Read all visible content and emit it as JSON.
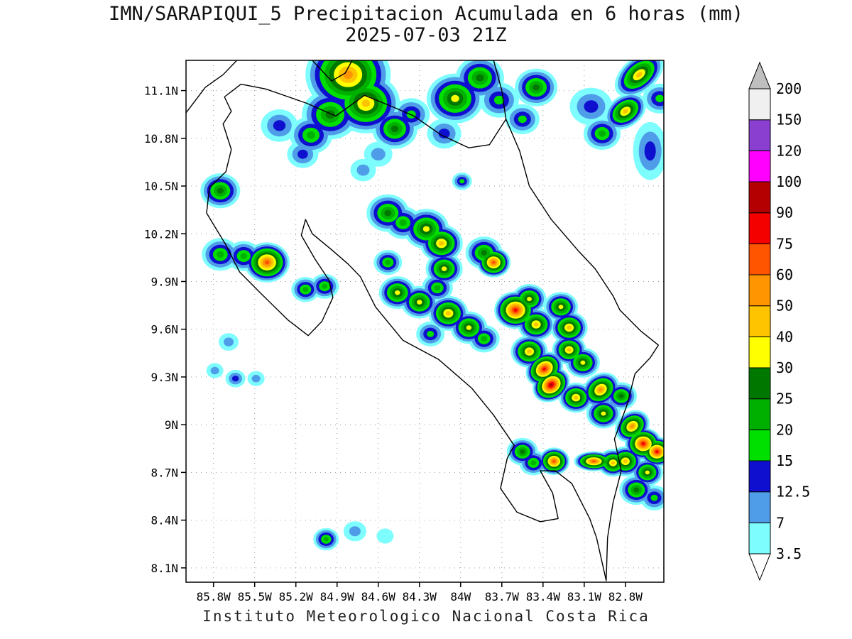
{
  "title": {
    "line1": "IMN/SARAPIQUI_5 Precipitacion Acumulada en 6 horas (mm)",
    "line2": "2025-07-03 21Z"
  },
  "footer": "Instituto Meteorologico Nacional Costa Rica",
  "chart_data": {
    "type": "heatmap",
    "title": "IMN/SARAPIQUI_5 Precipitacion Acumulada en 6 horas (mm)",
    "valid_time": "2025-07-03 21Z",
    "units": "mm",
    "region": "Costa Rica",
    "lon_range": [
      -86.0,
      -82.52
    ],
    "lat_range": [
      8.01,
      11.29
    ],
    "x_ticks": {
      "values": [
        -85.8,
        -85.5,
        -85.2,
        -84.9,
        -84.6,
        -84.3,
        -84.0,
        -83.7,
        -83.4,
        -83.1,
        -82.8
      ],
      "labels": [
        "85.8W",
        "85.5W",
        "85.2W",
        "84.9W",
        "84.6W",
        "84.3W",
        "84W",
        "83.7W",
        "83.4W",
        "83.1W",
        "82.8W"
      ]
    },
    "y_ticks": {
      "values": [
        11.1,
        10.8,
        10.5,
        10.2,
        9.9,
        9.6,
        9.3,
        9.0,
        8.7,
        8.4,
        8.1
      ],
      "labels": [
        "11.1N",
        "10.8N",
        "10.5N",
        "10.2N",
        "9.9N",
        "9.6N",
        "9.3N",
        "9N",
        "8.7N",
        "8.4N",
        "8.1N"
      ]
    },
    "grid": true,
    "legend_position": "right",
    "levels": [
      3.5,
      7,
      12.5,
      15,
      20,
      25,
      30,
      40,
      50,
      60,
      75,
      90,
      100,
      120,
      150,
      200
    ],
    "level_labels": [
      "3.5",
      "7",
      "12.5",
      "15",
      "20",
      "25",
      "30",
      "40",
      "50",
      "60",
      "75",
      "90",
      "100",
      "120",
      "150",
      "200"
    ],
    "colors": [
      "#7dfdfd",
      "#4f9ce8",
      "#0f0fd0",
      "#00e000",
      "#00b000",
      "#007800",
      "#ffff00",
      "#ffc400",
      "#ff9500",
      "#ff5500",
      "#f50000",
      "#b40000",
      "#ff00ff",
      "#8a3fd1",
      "#f0f0f0"
    ],
    "overflow_color": "#bfbfbf",
    "underflow_color": "#ffffff",
    "cells_format": "[lon, lat, peak_mm, radius_deg, optional_ry_ratio, optional_rotation_deg]",
    "cells": [
      [
        -84.82,
        11.2,
        50,
        0.3
      ],
      [
        -84.69,
        11.02,
        40,
        0.24
      ],
      [
        -84.95,
        10.95,
        25,
        0.2
      ],
      [
        -85.09,
        10.82,
        20,
        0.15
      ],
      [
        -85.32,
        10.88,
        12.5,
        0.13
      ],
      [
        -85.15,
        10.7,
        12.5,
        0.11
      ],
      [
        -84.48,
        10.86,
        25,
        0.16
      ],
      [
        -84.36,
        10.95,
        15,
        0.13
      ],
      [
        -84.6,
        10.7,
        7,
        0.1
      ],
      [
        -84.04,
        11.05,
        30,
        0.2
      ],
      [
        -83.86,
        11.18,
        25,
        0.17
      ],
      [
        -84.12,
        10.83,
        12.5,
        0.12
      ],
      [
        -83.72,
        11.04,
        15,
        0.14
      ],
      [
        -83.45,
        11.12,
        25,
        0.15
      ],
      [
        -83.55,
        10.92,
        15,
        0.12
      ],
      [
        -83.05,
        11.0,
        12.5,
        0.15
      ],
      [
        -82.97,
        10.83,
        20,
        0.13
      ],
      [
        -82.7,
        11.2,
        40,
        0.2,
        0.6,
        -40
      ],
      [
        -82.8,
        10.97,
        40,
        0.16,
        0.7,
        -35
      ],
      [
        -82.62,
        10.72,
        12.5,
        0.12,
        1.7,
        0
      ],
      [
        -82.55,
        11.05,
        15,
        0.12
      ],
      [
        -85.75,
        10.47,
        25,
        0.14
      ],
      [
        -85.75,
        10.07,
        20,
        0.13
      ],
      [
        -85.41,
        10.02,
        60,
        0.16
      ],
      [
        -85.58,
        10.06,
        20,
        0.12
      ],
      [
        -85.13,
        9.85,
        20,
        0.1
      ],
      [
        -84.99,
        9.87,
        20,
        0.1
      ],
      [
        -84.71,
        10.6,
        7,
        0.09
      ],
      [
        -83.99,
        10.53,
        15,
        0.07
      ],
      [
        -84.53,
        10.33,
        25,
        0.15
      ],
      [
        -84.42,
        10.27,
        20,
        0.13
      ],
      [
        -84.25,
        10.23,
        30,
        0.16
      ],
      [
        -84.14,
        10.14,
        40,
        0.15
      ],
      [
        -84.53,
        10.02,
        20,
        0.1
      ],
      [
        -84.12,
        9.98,
        30,
        0.13
      ],
      [
        -83.83,
        10.08,
        25,
        0.13
      ],
      [
        -83.76,
        10.02,
        60,
        0.12
      ],
      [
        -84.46,
        9.83,
        30,
        0.13
      ],
      [
        -84.3,
        9.77,
        30,
        0.13
      ],
      [
        -84.17,
        9.86,
        20,
        0.11
      ],
      [
        -84.09,
        9.7,
        40,
        0.14
      ],
      [
        -84.22,
        9.57,
        15,
        0.1
      ],
      [
        -83.94,
        9.61,
        30,
        0.13
      ],
      [
        -83.83,
        9.54,
        20,
        0.11
      ],
      [
        -83.6,
        9.72,
        75,
        0.15
      ],
      [
        -83.5,
        9.79,
        30,
        0.12
      ],
      [
        -83.45,
        9.63,
        40,
        0.13
      ],
      [
        -83.27,
        9.74,
        30,
        0.12
      ],
      [
        -83.21,
        9.61,
        40,
        0.13
      ],
      [
        -83.5,
        9.46,
        40,
        0.13
      ],
      [
        -83.39,
        9.35,
        75,
        0.14,
        0.8,
        -35
      ],
      [
        -83.34,
        9.25,
        90,
        0.14,
        0.8,
        -35
      ],
      [
        -83.21,
        9.47,
        40,
        0.12
      ],
      [
        -83.11,
        9.39,
        30,
        0.12
      ],
      [
        -82.98,
        9.22,
        50,
        0.14,
        0.8,
        -35
      ],
      [
        -83.16,
        9.17,
        40,
        0.12
      ],
      [
        -82.96,
        9.07,
        30,
        0.12
      ],
      [
        -82.83,
        9.18,
        25,
        0.11
      ],
      [
        -82.75,
        8.99,
        50,
        0.13,
        0.8,
        -35
      ],
      [
        -82.67,
        8.88,
        75,
        0.13
      ],
      [
        -82.57,
        8.83,
        75,
        0.12
      ],
      [
        -82.8,
        8.77,
        40,
        0.12
      ],
      [
        -82.64,
        8.7,
        30,
        0.11
      ],
      [
        -83.55,
        8.83,
        25,
        0.11
      ],
      [
        -83.47,
        8.76,
        20,
        0.1
      ],
      [
        -83.32,
        8.77,
        60,
        0.11
      ],
      [
        -83.03,
        8.77,
        60,
        0.14,
        0.5,
        0
      ],
      [
        -82.89,
        8.76,
        40,
        0.11
      ],
      [
        -82.72,
        8.59,
        25,
        0.12
      ],
      [
        -82.59,
        8.54,
        15,
        0.1
      ],
      [
        -85.69,
        9.52,
        7,
        0.07
      ],
      [
        -85.64,
        9.29,
        12.5,
        0.07
      ],
      [
        -85.79,
        9.34,
        7,
        0.06
      ],
      [
        -85.49,
        9.29,
        7,
        0.06
      ],
      [
        -84.98,
        8.28,
        20,
        0.09
      ],
      [
        -84.77,
        8.33,
        7,
        0.08
      ],
      [
        -84.55,
        8.3,
        3.5,
        0.06
      ]
    ],
    "basemap": {
      "costa_rica_outline": [
        [
          -85.72,
          11.06
        ],
        [
          -85.6,
          11.14
        ],
        [
          -85.42,
          11.11
        ],
        [
          -85.12,
          11.02
        ],
        [
          -84.91,
          10.94
        ],
        [
          -84.7,
          11.07
        ],
        [
          -84.5,
          11.0
        ],
        [
          -84.34,
          10.94
        ],
        [
          -84.14,
          10.82
        ],
        [
          -83.94,
          10.74
        ],
        [
          -83.79,
          10.76
        ],
        [
          -83.67,
          10.92
        ],
        [
          -83.57,
          10.72
        ],
        [
          -83.5,
          10.5
        ],
        [
          -83.34,
          10.29
        ],
        [
          -83.14,
          10.09
        ],
        [
          -83.02,
          9.98
        ],
        [
          -82.89,
          9.81
        ],
        [
          -82.84,
          9.72
        ],
        [
          -82.69,
          9.59
        ],
        [
          -82.56,
          9.5
        ],
        [
          -82.62,
          9.42
        ],
        [
          -82.73,
          9.32
        ],
        [
          -82.79,
          9.12
        ],
        [
          -82.88,
          8.91
        ],
        [
          -82.83,
          8.71
        ],
        [
          -82.89,
          8.51
        ],
        [
          -82.93,
          8.29
        ],
        [
          -82.94,
          8.02
        ],
        [
          -83.01,
          8.29
        ],
        [
          -83.06,
          8.41
        ],
        [
          -83.19,
          8.63
        ],
        [
          -83.31,
          8.71
        ],
        [
          -83.42,
          8.71
        ],
        [
          -83.33,
          8.57
        ],
        [
          -83.29,
          8.41
        ],
        [
          -83.42,
          8.39
        ],
        [
          -83.59,
          8.45
        ],
        [
          -83.71,
          8.6
        ],
        [
          -83.66,
          8.79
        ],
        [
          -83.61,
          8.87
        ],
        [
          -83.76,
          9.06
        ],
        [
          -83.92,
          9.23
        ],
        [
          -84.16,
          9.41
        ],
        [
          -84.42,
          9.53
        ],
        [
          -84.62,
          9.74
        ],
        [
          -84.73,
          9.93
        ],
        [
          -84.82,
          10.01
        ],
        [
          -84.94,
          10.1
        ],
        [
          -85.08,
          10.2
        ],
        [
          -85.13,
          10.29
        ],
        [
          -85.16,
          10.19
        ],
        [
          -85.06,
          10.04
        ],
        [
          -84.96,
          9.91
        ],
        [
          -84.93,
          9.8
        ],
        [
          -85.01,
          9.65
        ],
        [
          -85.11,
          9.56
        ],
        [
          -85.26,
          9.66
        ],
        [
          -85.46,
          9.83
        ],
        [
          -85.61,
          9.96
        ],
        [
          -85.71,
          10.13
        ],
        [
          -85.85,
          10.33
        ],
        [
          -85.83,
          10.49
        ],
        [
          -85.71,
          10.59
        ],
        [
          -85.67,
          10.73
        ],
        [
          -85.73,
          10.89
        ],
        [
          -85.67,
          10.97
        ],
        [
          -85.72,
          11.06
        ]
      ],
      "nicaragua_pacific_coast": [
        [
          -86.0,
          10.96
        ],
        [
          -85.86,
          11.12
        ],
        [
          -85.73,
          11.2
        ],
        [
          -85.63,
          11.29
        ]
      ],
      "lake_nicaragua_shore": [
        [
          -85.08,
          11.29
        ],
        [
          -84.94,
          11.16
        ],
        [
          -84.84,
          11.21
        ],
        [
          -84.79,
          11.29
        ]
      ],
      "nicaragua_caribbean_coast": [
        [
          -83.76,
          11.29
        ],
        [
          -83.7,
          11.1
        ],
        [
          -83.67,
          10.92
        ]
      ]
    }
  }
}
